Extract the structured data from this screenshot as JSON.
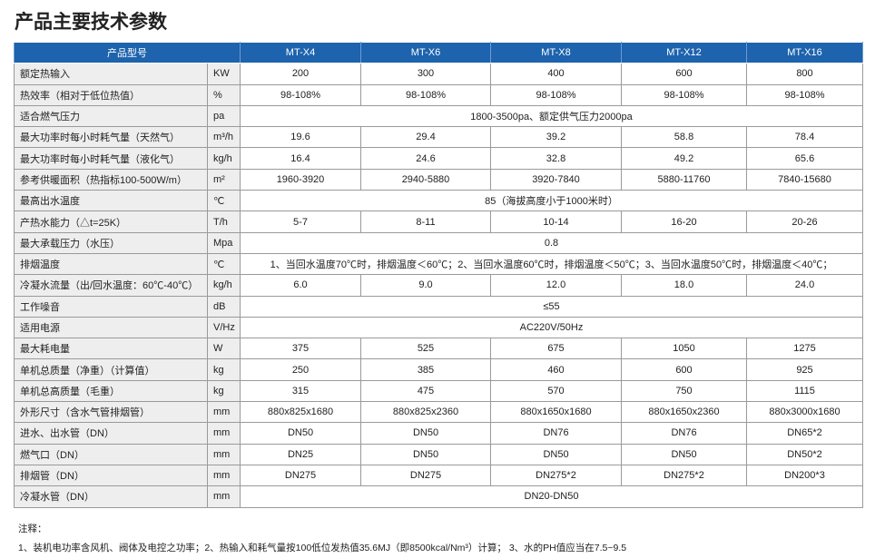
{
  "header": {
    "title": "产品主要技术参数"
  },
  "table": {
    "head": {
      "label": "产品型号",
      "models": [
        "MT-X4",
        "MT-X6",
        "MT-X8",
        "MT-X12",
        "MT-X16"
      ]
    },
    "rows": [
      {
        "name": "额定热输入",
        "unit": "KW",
        "values": [
          "200",
          "300",
          "400",
          "600",
          "800"
        ]
      },
      {
        "name": "热效率（相对于低位热值）",
        "unit": "%",
        "values": [
          "98-108%",
          "98-108%",
          "98-108%",
          "98-108%",
          "98-108%"
        ]
      },
      {
        "name": "适合燃气压力",
        "unit": "pa",
        "values": [
          "1800-3500pa、额定供气压力2000pa"
        ]
      },
      {
        "name": "最大功率时每小时耗气量（天然气）",
        "unit": "m³/h",
        "values": [
          "19.6",
          "29.4",
          "39.2",
          "58.8",
          "78.4"
        ]
      },
      {
        "name": "最大功率时每小时耗气量（液化气）",
        "unit": "kg/h",
        "values": [
          "16.4",
          "24.6",
          "32.8",
          "49.2",
          "65.6"
        ]
      },
      {
        "name": "参考供暖面积（热指标100-500W/m）",
        "unit": "m²",
        "values": [
          "1960-3920",
          "2940-5880",
          "3920-7840",
          "5880-11760",
          "7840-15680"
        ]
      },
      {
        "name": "最高出水温度",
        "unit": "℃",
        "values": [
          "85（海拔高度小于1000米时）"
        ]
      },
      {
        "name": "产热水能力（△t=25K）",
        "unit": "T/h",
        "values": [
          "5-7",
          "8-11",
          "10-14",
          "16-20",
          "20-26"
        ]
      },
      {
        "name": "最大承载压力（水压）",
        "unit": "Mpa",
        "values": [
          "0.8"
        ]
      },
      {
        "name": "排烟温度",
        "unit": "℃",
        "values": [
          "1、当回水温度70℃时，排烟温度＜60℃；2、当回水温度60℃时，排烟温度＜50℃；3、当回水温度50℃时，排烟温度＜40℃；"
        ]
      },
      {
        "name": "冷凝水流量（出/回水温度：60℃-40℃）",
        "unit": "kg/h",
        "values": [
          "6.0",
          "9.0",
          "12.0",
          "18.0",
          "24.0"
        ]
      },
      {
        "name": "工作噪音",
        "unit": "dB",
        "values": [
          "≤55"
        ]
      },
      {
        "name": "适用电源",
        "unit": "V/Hz",
        "values": [
          "AC220V/50Hz"
        ]
      },
      {
        "name": "最大耗电量",
        "unit": "W",
        "values": [
          "375",
          "525",
          "675",
          "1050",
          "1275"
        ]
      },
      {
        "name": "单机总质量（净重）（计算值）",
        "unit": "kg",
        "values": [
          "250",
          "385",
          "460",
          "600",
          "925"
        ]
      },
      {
        "name": "单机总高质量（毛重）",
        "unit": "kg",
        "values": [
          "315",
          "475",
          "570",
          "750",
          "1115"
        ]
      },
      {
        "name": "外形尺寸（含水气管排烟管）",
        "unit": "mm",
        "values": [
          "880x825x1680",
          "880x825x2360",
          "880x1650x1680",
          "880x1650x2360",
          "880x3000x1680"
        ]
      },
      {
        "name": "进水、出水管（DN）",
        "unit": "mm",
        "values": [
          "DN50",
          "DN50",
          "DN76",
          "DN76",
          "DN65*2"
        ]
      },
      {
        "name": "燃气口（DN）",
        "unit": "mm",
        "values": [
          "DN25",
          "DN50",
          "DN50",
          "DN50",
          "DN50*2"
        ]
      },
      {
        "name": "排烟管（DN）",
        "unit": "mm",
        "values": [
          "DN275",
          "DN275",
          "DN275*2",
          "DN275*2",
          "DN200*3"
        ]
      },
      {
        "name": "冷凝水管（DN）",
        "unit": "mm",
        "values": [
          "DN20-DN50"
        ]
      }
    ]
  },
  "notes": {
    "label": "注释：",
    "text": "1、装机电功率含风机、阀体及电控之功率；2、热输入和耗气量按100低位发热值35.6MJ（即8500kcal/Nm³）计算； 3、水的PH值应当在7.5~9.5"
  }
}
